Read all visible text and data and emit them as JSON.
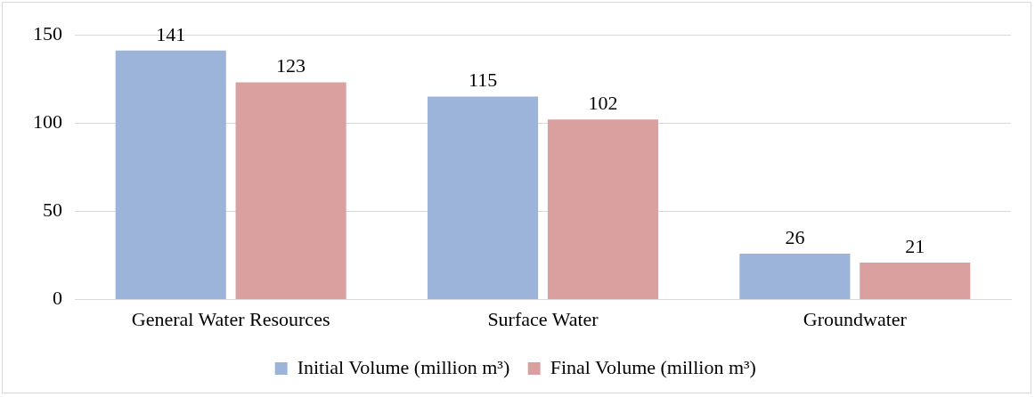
{
  "chart_data": {
    "type": "bar",
    "categories": [
      "General Water Resources",
      "Surface Water",
      "Groundwater"
    ],
    "series": [
      {
        "name": "Initial Volume (million m³)",
        "color": "#9cb3da",
        "values": [
          141,
          115,
          26
        ]
      },
      {
        "name": "Final Volume (million m³)",
        "color": "#d9a09f",
        "values": [
          123,
          102,
          21
        ]
      }
    ],
    "ylim": [
      0,
      150
    ],
    "yticks": [
      0,
      50,
      100,
      150
    ],
    "grid": "y",
    "legend": "bottom",
    "data_labels": true
  }
}
